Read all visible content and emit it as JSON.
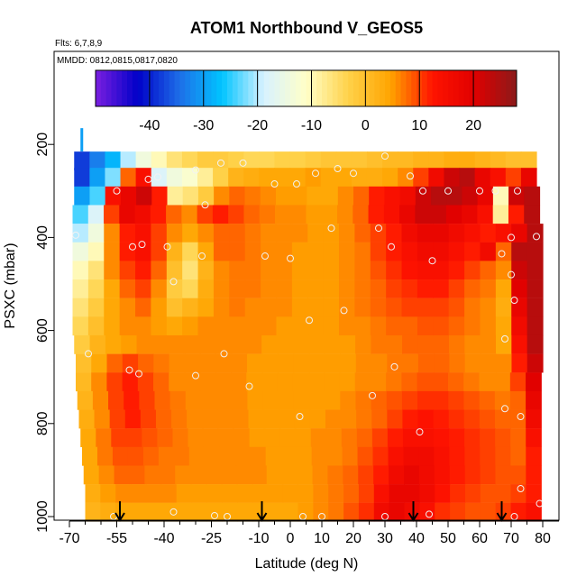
{
  "chart_data": {
    "type": "heatmap",
    "title": "ATOM1 Northbound V_GEOS5",
    "notes": [
      "Flts: 6,7,8,9",
      "MMDD: 0812,0815,0817,0820"
    ],
    "xlabel": "Latitude (deg N)",
    "ylabel": "PSXC (mbar)",
    "xlim": [
      -70,
      80
    ],
    "ylim": [
      1000,
      0
    ],
    "x_ticks": [
      -70,
      -55,
      -40,
      -25,
      -10,
      0,
      10,
      20,
      30,
      40,
      50,
      60,
      70,
      80
    ],
    "x_tick_labels": [
      "-70",
      "-55",
      "-40",
      "-25",
      "-10",
      "0",
      "10",
      "20",
      "30",
      "40",
      "50",
      "60",
      "70",
      "80"
    ],
    "y_ticks": [
      200,
      400,
      600,
      800,
      1000
    ],
    "y_tick_labels": [
      "200",
      "400",
      "600",
      "800",
      "1000"
    ],
    "colorbar": {
      "range": [
        -50,
        28
      ],
      "ticks": [
        -40,
        -30,
        -20,
        -10,
        0,
        10,
        20
      ],
      "tick_labels": [
        "-40",
        "-30",
        "-20",
        "-10",
        "0",
        "10",
        "20"
      ],
      "colors": [
        "#7b1fe0",
        "#0000c8",
        "#1e6fe8",
        "#00c4ff",
        "#d8f2ff",
        "#ffffc8",
        "#ffd24a",
        "#ffa400",
        "#ff1400",
        "#e00000",
        "#8b1a1a"
      ]
    },
    "v_wind_meridional_cross_section": [
      {
        "pressure": 235,
        "x_start": -68.5,
        "x_end": 78,
        "values": [
          -38,
          -33,
          -28,
          -20,
          -14,
          -10,
          -6,
          -4,
          -2,
          -2,
          -3,
          -4,
          -4,
          -3,
          -3,
          -2,
          -1,
          -1,
          -1,
          0,
          1,
          1,
          2,
          2,
          3,
          3,
          2,
          1,
          0,
          0
        ]
      },
      {
        "pressure": 270,
        "x_start": -68.5,
        "x_end": 78,
        "values": [
          -38,
          -30,
          -22,
          8,
          14,
          -18,
          -14,
          -12,
          -8,
          -3,
          2,
          3,
          4,
          4,
          4,
          5,
          4,
          4,
          3,
          3,
          4,
          6,
          10,
          16,
          22,
          24,
          18,
          14,
          10,
          18
        ]
      },
      {
        "pressure": 310,
        "x_start": -68.5,
        "x_end": 79,
        "values": [
          -30,
          -24,
          14,
          18,
          22,
          12,
          -8,
          -6,
          -2,
          6,
          8,
          7,
          6,
          5,
          5,
          4,
          4,
          6,
          8,
          12,
          14,
          16,
          22,
          24,
          24,
          22,
          18,
          -10,
          22,
          24
        ]
      },
      {
        "pressure": 350,
        "x_start": -69,
        "x_end": 79,
        "values": [
          -24,
          -18,
          10,
          18,
          16,
          12,
          8,
          6,
          10,
          12,
          10,
          8,
          7,
          6,
          6,
          5,
          5,
          6,
          8,
          12,
          14,
          18,
          22,
          22,
          20,
          18,
          14,
          -8,
          12,
          24
        ]
      },
      {
        "pressure": 390,
        "x_start": -69,
        "x_end": 80,
        "values": [
          -20,
          -14,
          6,
          12,
          14,
          10,
          6,
          4,
          6,
          8,
          8,
          7,
          6,
          6,
          6,
          5,
          5,
          6,
          8,
          10,
          12,
          16,
          18,
          18,
          16,
          14,
          12,
          14,
          18,
          24
        ]
      },
      {
        "pressure": 430,
        "x_start": -69,
        "x_end": 80,
        "values": [
          -14,
          -10,
          6,
          12,
          14,
          10,
          2,
          -4,
          4,
          8,
          8,
          7,
          6,
          6,
          5,
          5,
          5,
          6,
          7,
          10,
          12,
          14,
          16,
          16,
          14,
          12,
          16,
          8,
          24,
          24
        ]
      },
      {
        "pressure": 470,
        "x_start": -69,
        "x_end": 80,
        "values": [
          -10,
          -6,
          6,
          10,
          12,
          8,
          0,
          -6,
          2,
          6,
          7,
          7,
          6,
          6,
          5,
          5,
          5,
          6,
          7,
          9,
          11,
          13,
          14,
          14,
          12,
          10,
          8,
          6,
          22,
          24
        ]
      },
      {
        "pressure": 510,
        "x_start": -69,
        "x_end": 80,
        "values": [
          -8,
          -4,
          4,
          8,
          10,
          6,
          -2,
          -4,
          3,
          6,
          7,
          7,
          6,
          6,
          5,
          5,
          5,
          6,
          7,
          8,
          10,
          11,
          12,
          12,
          10,
          8,
          7,
          4,
          20,
          24
        ]
      },
      {
        "pressure": 550,
        "x_start": -69,
        "x_end": 80,
        "values": [
          -6,
          -2,
          4,
          6,
          8,
          5,
          0,
          2,
          4,
          6,
          7,
          6,
          6,
          6,
          5,
          5,
          5,
          6,
          7,
          8,
          9,
          10,
          10,
          10,
          9,
          7,
          6,
          3,
          18,
          24
        ]
      },
      {
        "pressure": 590,
        "x_start": -69,
        "x_end": 80,
        "values": [
          -4,
          0,
          4,
          6,
          6,
          5,
          4,
          5,
          6,
          6,
          6,
          6,
          6,
          5,
          5,
          5,
          5,
          6,
          6,
          7,
          8,
          8,
          9,
          9,
          8,
          7,
          6,
          4,
          16,
          24
        ]
      },
      {
        "pressure": 630,
        "x_start": -68.5,
        "x_end": 80,
        "values": [
          -2,
          2,
          4,
          5,
          6,
          6,
          6,
          6,
          6,
          6,
          6,
          6,
          5,
          5,
          5,
          5,
          5,
          5,
          6,
          7,
          7,
          8,
          8,
          8,
          7,
          6,
          6,
          4,
          14,
          24
        ]
      },
      {
        "pressure": 670,
        "x_start": -68,
        "x_end": 80,
        "values": [
          0,
          4,
          8,
          10,
          8,
          7,
          6,
          6,
          6,
          6,
          6,
          5,
          5,
          5,
          5,
          5,
          5,
          5,
          6,
          6,
          7,
          7,
          8,
          8,
          7,
          6,
          6,
          6,
          12,
          22
        ]
      },
      {
        "pressure": 710,
        "x_start": -68,
        "x_end": 79.5,
        "values": [
          1,
          6,
          10,
          12,
          10,
          8,
          6,
          6,
          6,
          6,
          6,
          5,
          5,
          5,
          5,
          5,
          5,
          5,
          6,
          6,
          7,
          8,
          9,
          9,
          8,
          7,
          6,
          6,
          10,
          20
        ]
      },
      {
        "pressure": 750,
        "x_start": -67.5,
        "x_end": 79.5,
        "values": [
          2,
          6,
          10,
          12,
          10,
          8,
          7,
          6,
          6,
          6,
          6,
          5,
          5,
          5,
          5,
          5,
          5,
          6,
          7,
          8,
          9,
          10,
          11,
          11,
          10,
          9,
          8,
          7,
          8,
          18
        ]
      },
      {
        "pressure": 790,
        "x_start": -67,
        "x_end": 79.5,
        "values": [
          3,
          6,
          10,
          12,
          10,
          8,
          7,
          6,
          6,
          6,
          6,
          5,
          5,
          5,
          5,
          5,
          6,
          6,
          7,
          8,
          10,
          12,
          13,
          12,
          11,
          10,
          9,
          8,
          8,
          16
        ]
      },
      {
        "pressure": 830,
        "x_start": -66.5,
        "x_end": 79.5,
        "values": [
          4,
          7,
          10,
          10,
          9,
          8,
          7,
          6,
          6,
          6,
          6,
          5,
          5,
          5,
          5,
          6,
          6,
          7,
          8,
          10,
          12,
          14,
          14,
          13,
          12,
          11,
          10,
          9,
          8,
          14
        ]
      },
      {
        "pressure": 870,
        "x_start": -66,
        "x_end": 79.5,
        "values": [
          4,
          7,
          9,
          9,
          8,
          7,
          7,
          6,
          6,
          6,
          6,
          6,
          5,
          5,
          5,
          6,
          6,
          7,
          9,
          11,
          14,
          16,
          16,
          14,
          12,
          11,
          10,
          9,
          8,
          12
        ]
      },
      {
        "pressure": 910,
        "x_start": -65.5,
        "x_end": 79.5,
        "values": [
          4,
          6,
          8,
          8,
          7,
          7,
          6,
          6,
          6,
          6,
          6,
          6,
          5,
          5,
          5,
          6,
          7,
          8,
          10,
          12,
          16,
          18,
          16,
          14,
          12,
          11,
          10,
          9,
          9,
          12
        ]
      },
      {
        "pressure": 950,
        "x_start": -65,
        "x_end": 79.5,
        "values": [
          3,
          5,
          6,
          6,
          6,
          6,
          5,
          5,
          5,
          5,
          5,
          5,
          5,
          5,
          5,
          6,
          7,
          8,
          10,
          14,
          18,
          18,
          16,
          13,
          11,
          10,
          9,
          9,
          10,
          12
        ]
      },
      {
        "pressure": 990,
        "x_start": -65,
        "x_end": 79.5,
        "values": [
          2,
          3,
          4,
          4,
          4,
          4,
          4,
          4,
          4,
          4,
          4,
          4,
          4,
          4,
          5,
          6,
          7,
          9,
          11,
          16,
          18,
          16,
          14,
          11,
          10,
          9,
          9,
          10,
          12,
          14
        ]
      }
    ],
    "observation_markers": [
      {
        "lat": -55,
        "p": 300
      },
      {
        "lat": -45,
        "p": 275
      },
      {
        "lat": -42,
        "p": 270
      },
      {
        "lat": -30,
        "p": 255
      },
      {
        "lat": -22,
        "p": 240
      },
      {
        "lat": -15,
        "p": 240
      },
      {
        "lat": -5,
        "p": 285
      },
      {
        "lat": 2,
        "p": 285
      },
      {
        "lat": 8,
        "p": 262
      },
      {
        "lat": 15,
        "p": 252
      },
      {
        "lat": 20,
        "p": 262
      },
      {
        "lat": 30,
        "p": 225
      },
      {
        "lat": 38,
        "p": 268
      },
      {
        "lat": 42,
        "p": 300
      },
      {
        "lat": 50,
        "p": 300
      },
      {
        "lat": 60,
        "p": 300
      },
      {
        "lat": 65,
        "p": 300
      },
      {
        "lat": 72,
        "p": 300
      },
      {
        "lat": -68,
        "p": 395
      },
      {
        "lat": -50,
        "p": 420
      },
      {
        "lat": -47,
        "p": 415
      },
      {
        "lat": -39,
        "p": 420
      },
      {
        "lat": -28,
        "p": 440
      },
      {
        "lat": -27,
        "p": 330
      },
      {
        "lat": -8,
        "p": 440
      },
      {
        "lat": 0,
        "p": 445
      },
      {
        "lat": 13,
        "p": 380
      },
      {
        "lat": 28,
        "p": 380
      },
      {
        "lat": 32,
        "p": 420
      },
      {
        "lat": 45,
        "p": 450
      },
      {
        "lat": 67,
        "p": 435
      },
      {
        "lat": 70,
        "p": 400
      },
      {
        "lat": 78,
        "p": 398
      },
      {
        "lat": -37,
        "p": 495
      },
      {
        "lat": 70,
        "p": 480
      },
      {
        "lat": 17,
        "p": 557
      },
      {
        "lat": 6,
        "p": 578
      },
      {
        "lat": 71,
        "p": 535
      },
      {
        "lat": -21,
        "p": 650
      },
      {
        "lat": -64,
        "p": 650
      },
      {
        "lat": -51,
        "p": 685
      },
      {
        "lat": -48,
        "p": 693
      },
      {
        "lat": -30,
        "p": 697
      },
      {
        "lat": -13,
        "p": 720
      },
      {
        "lat": 33,
        "p": 678
      },
      {
        "lat": 26,
        "p": 740
      },
      {
        "lat": 68,
        "p": 618
      },
      {
        "lat": 68,
        "p": 768
      },
      {
        "lat": 73,
        "p": 785
      },
      {
        "lat": 3,
        "p": 785
      },
      {
        "lat": 41,
        "p": 818
      },
      {
        "lat": 73,
        "p": 940
      },
      {
        "lat": 79,
        "p": 972
      },
      {
        "lat": -56,
        "p": 1000
      },
      {
        "lat": -37,
        "p": 990
      },
      {
        "lat": -24,
        "p": 998
      },
      {
        "lat": -20,
        "p": 1000
      },
      {
        "lat": 4,
        "p": 1000
      },
      {
        "lat": 10,
        "p": 1000
      },
      {
        "lat": 30,
        "p": 1000
      },
      {
        "lat": 44,
        "p": 995
      },
      {
        "lat": 71,
        "p": 1000
      }
    ],
    "flight_markers_lat": [
      -54,
      -9,
      39,
      67
    ]
  }
}
